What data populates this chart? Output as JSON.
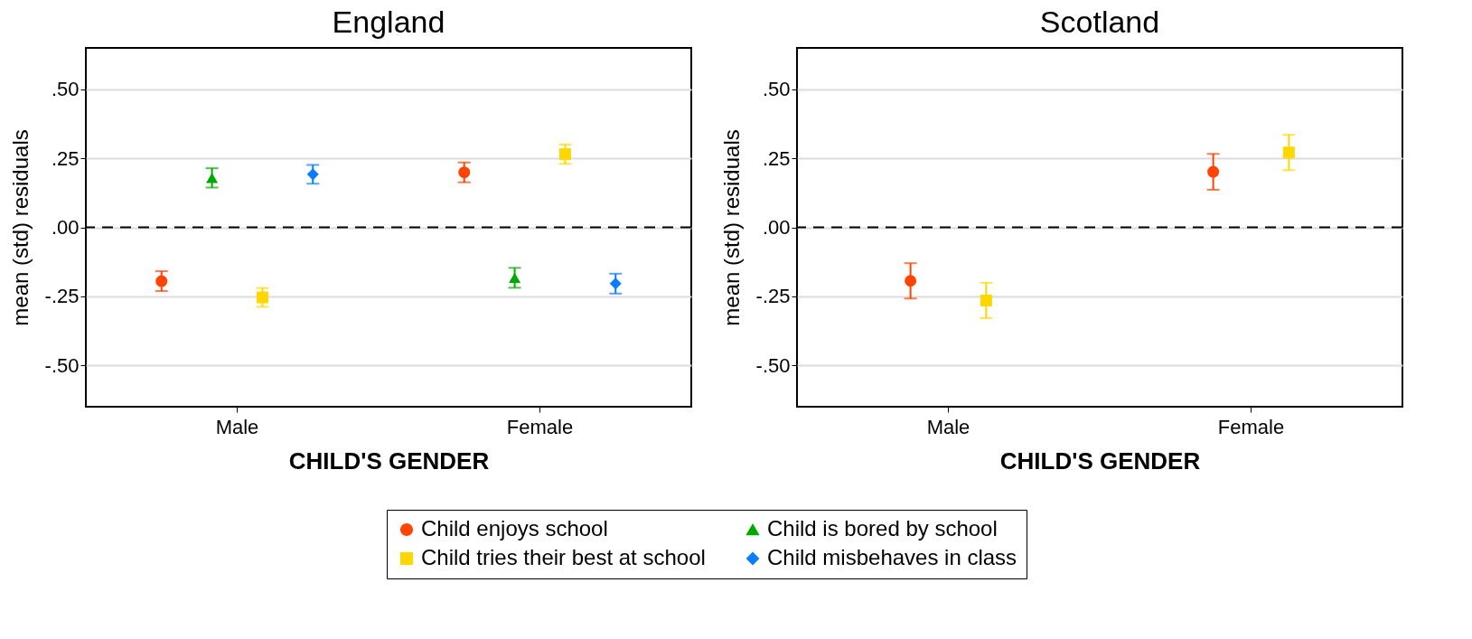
{
  "chart_data": [
    {
      "type": "scatter",
      "title": "England",
      "xlabel": "CHILD'S GENDER",
      "ylabel": "mean (std) residuals",
      "categories": [
        "Male",
        "Female"
      ],
      "ylim": [
        -0.65,
        0.65
      ],
      "yticks": [
        {
          "value": -0.5,
          "label": "-.50"
        },
        {
          "value": -0.25,
          "label": "-.25"
        },
        {
          "value": 0,
          "label": ".00"
        },
        {
          "value": 0.25,
          "label": ".25"
        },
        {
          "value": 0.5,
          "label": ".50"
        }
      ],
      "grid": "y",
      "legend": "bottom",
      "ref_lines": [
        {
          "axis": "y",
          "value": 0,
          "color": "#000000",
          "line_style": "dashed"
        }
      ],
      "series": [
        {
          "name": "Child enjoys school",
          "color": "#ff4500",
          "marker": "circle",
          "values": [
            -0.195,
            0.199
          ],
          "errors": [
            0.036,
            0.036
          ]
        },
        {
          "name": "Child is bored by school",
          "color": "#00a900",
          "marker": "triangle",
          "values": [
            0.179,
            -0.183
          ],
          "errors": [
            0.035,
            0.036
          ]
        },
        {
          "name": "Child tries their best at school",
          "color": "#ffd700",
          "marker": "square",
          "values": [
            -0.254,
            0.265
          ],
          "errors": [
            0.034,
            0.035
          ]
        },
        {
          "name": "Child misbehaves in class",
          "color": "#0a7cff",
          "marker": "diamond",
          "values": [
            0.192,
            -0.204
          ],
          "errors": [
            0.034,
            0.036
          ]
        }
      ]
    },
    {
      "type": "scatter",
      "title": "Scotland",
      "xlabel": "CHILD'S GENDER",
      "ylabel": "mean (std) residuals",
      "categories": [
        "Male",
        "Female"
      ],
      "ylim": [
        -0.65,
        0.65
      ],
      "yticks": [
        {
          "value": -0.5,
          "label": "-.50"
        },
        {
          "value": -0.25,
          "label": "-.25"
        },
        {
          "value": 0,
          "label": ".00"
        },
        {
          "value": 0.25,
          "label": ".25"
        },
        {
          "value": 0.5,
          "label": ".50"
        }
      ],
      "grid": "y",
      "ref_lines": [
        {
          "axis": "y",
          "value": 0,
          "color": "#000000",
          "line_style": "dashed"
        }
      ],
      "series": [
        {
          "name": "Child enjoys school",
          "color": "#ff4500",
          "marker": "circle",
          "values": [
            -0.194,
            0.201
          ],
          "errors": [
            0.064,
            0.065
          ]
        },
        {
          "name": "Child tries their best at school",
          "color": "#ffd700",
          "marker": "square",
          "values": [
            -0.265,
            0.271
          ],
          "errors": [
            0.064,
            0.064
          ]
        }
      ]
    }
  ]
}
